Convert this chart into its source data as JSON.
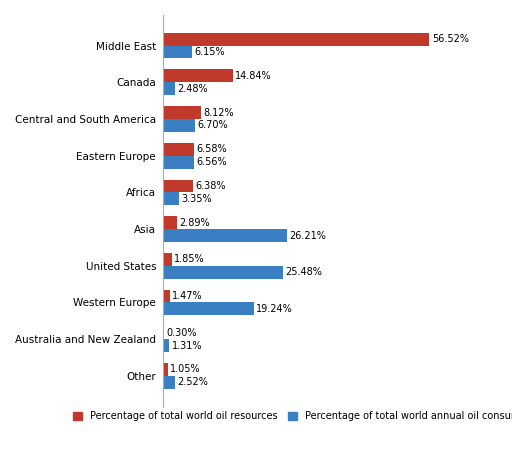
{
  "categories": [
    "Middle East",
    "Canada",
    "Central and South America",
    "Eastern Europe",
    "Africa",
    "Asia",
    "United States",
    "Western Europe",
    "Australia and New Zealand",
    "Other"
  ],
  "resources": [
    56.52,
    14.84,
    8.12,
    6.58,
    6.38,
    2.89,
    1.85,
    1.47,
    0.3,
    1.05
  ],
  "consumption": [
    6.15,
    2.48,
    6.7,
    6.56,
    3.35,
    26.21,
    25.48,
    19.24,
    1.31,
    2.52
  ],
  "resource_color": "#C0392B",
  "consumption_color": "#3A7FC1",
  "bar_height": 0.35,
  "background_color": "#FFFFFF",
  "legend_resource": "Percentage of total world oil resources",
  "legend_consumption": "Percentage of total world annual oil consumption",
  "label_fontsize": 7.0,
  "tick_fontsize": 7.5,
  "legend_fontsize": 7.0,
  "xlim": [
    0,
    62
  ]
}
